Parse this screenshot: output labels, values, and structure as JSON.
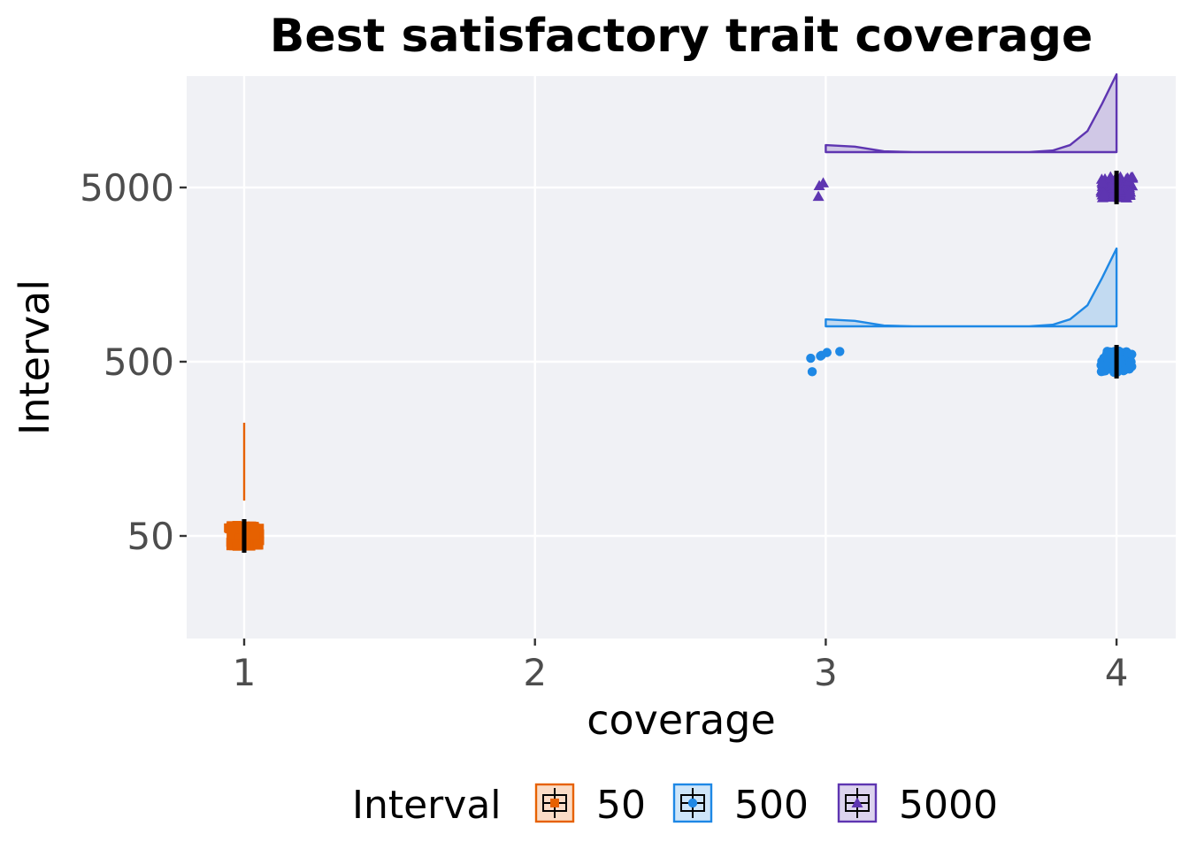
{
  "chart_data": {
    "type": "raincloud",
    "title": "Best satisfactory trait coverage",
    "xlabel": "coverage",
    "ylabel": "Interval",
    "x_ticks": [
      1,
      2,
      3,
      4
    ],
    "x_tick_labels": [
      "1",
      "2",
      "3",
      "4"
    ],
    "y_categories": [
      "50",
      "500",
      "5000"
    ],
    "xlim": [
      0.8,
      4.16
    ],
    "grid": true,
    "background": "#f0f1f5",
    "legend": {
      "title": "Interval",
      "placement": "bottom",
      "entries": [
        "50",
        "500",
        "5000"
      ]
    },
    "series": [
      {
        "name": "50",
        "color": "#e66100",
        "marker": "square",
        "median": 1,
        "values": [
          1
        ],
        "value_counts": [
          {
            "x": 1,
            "count": 100
          }
        ],
        "density": [
          {
            "x": 1,
            "height": 1.0
          }
        ]
      },
      {
        "name": "500",
        "color": "#1e88e5",
        "marker": "circle",
        "median": 4,
        "values": [
          3,
          4
        ],
        "value_counts": [
          {
            "x": 3,
            "count": 6
          },
          {
            "x": 4,
            "count": 94
          }
        ],
        "density": [
          {
            "x": 3.0,
            "height": 0.09
          },
          {
            "x": 3.1,
            "height": 0.07
          },
          {
            "x": 3.2,
            "height": 0.01
          },
          {
            "x": 3.3,
            "height": 0.0
          },
          {
            "x": 3.5,
            "height": 0.0
          },
          {
            "x": 3.7,
            "height": 0.0
          },
          {
            "x": 3.78,
            "height": 0.02
          },
          {
            "x": 3.84,
            "height": 0.09
          },
          {
            "x": 3.9,
            "height": 0.27
          },
          {
            "x": 3.95,
            "height": 0.62
          },
          {
            "x": 4.0,
            "height": 1.0
          }
        ]
      },
      {
        "name": "5000",
        "color": "#5e35b1",
        "marker": "triangle",
        "median": 4,
        "values": [
          3,
          4
        ],
        "value_counts": [
          {
            "x": 3,
            "count": 3
          },
          {
            "x": 4,
            "count": 97
          }
        ],
        "density": [
          {
            "x": 3.0,
            "height": 0.09
          },
          {
            "x": 3.1,
            "height": 0.07
          },
          {
            "x": 3.2,
            "height": 0.01
          },
          {
            "x": 3.3,
            "height": 0.0
          },
          {
            "x": 3.5,
            "height": 0.0
          },
          {
            "x": 3.7,
            "height": 0.0
          },
          {
            "x": 3.78,
            "height": 0.02
          },
          {
            "x": 3.84,
            "height": 0.09
          },
          {
            "x": 3.9,
            "height": 0.27
          },
          {
            "x": 3.95,
            "height": 0.62
          },
          {
            "x": 4.0,
            "height": 1.0
          }
        ]
      }
    ]
  }
}
